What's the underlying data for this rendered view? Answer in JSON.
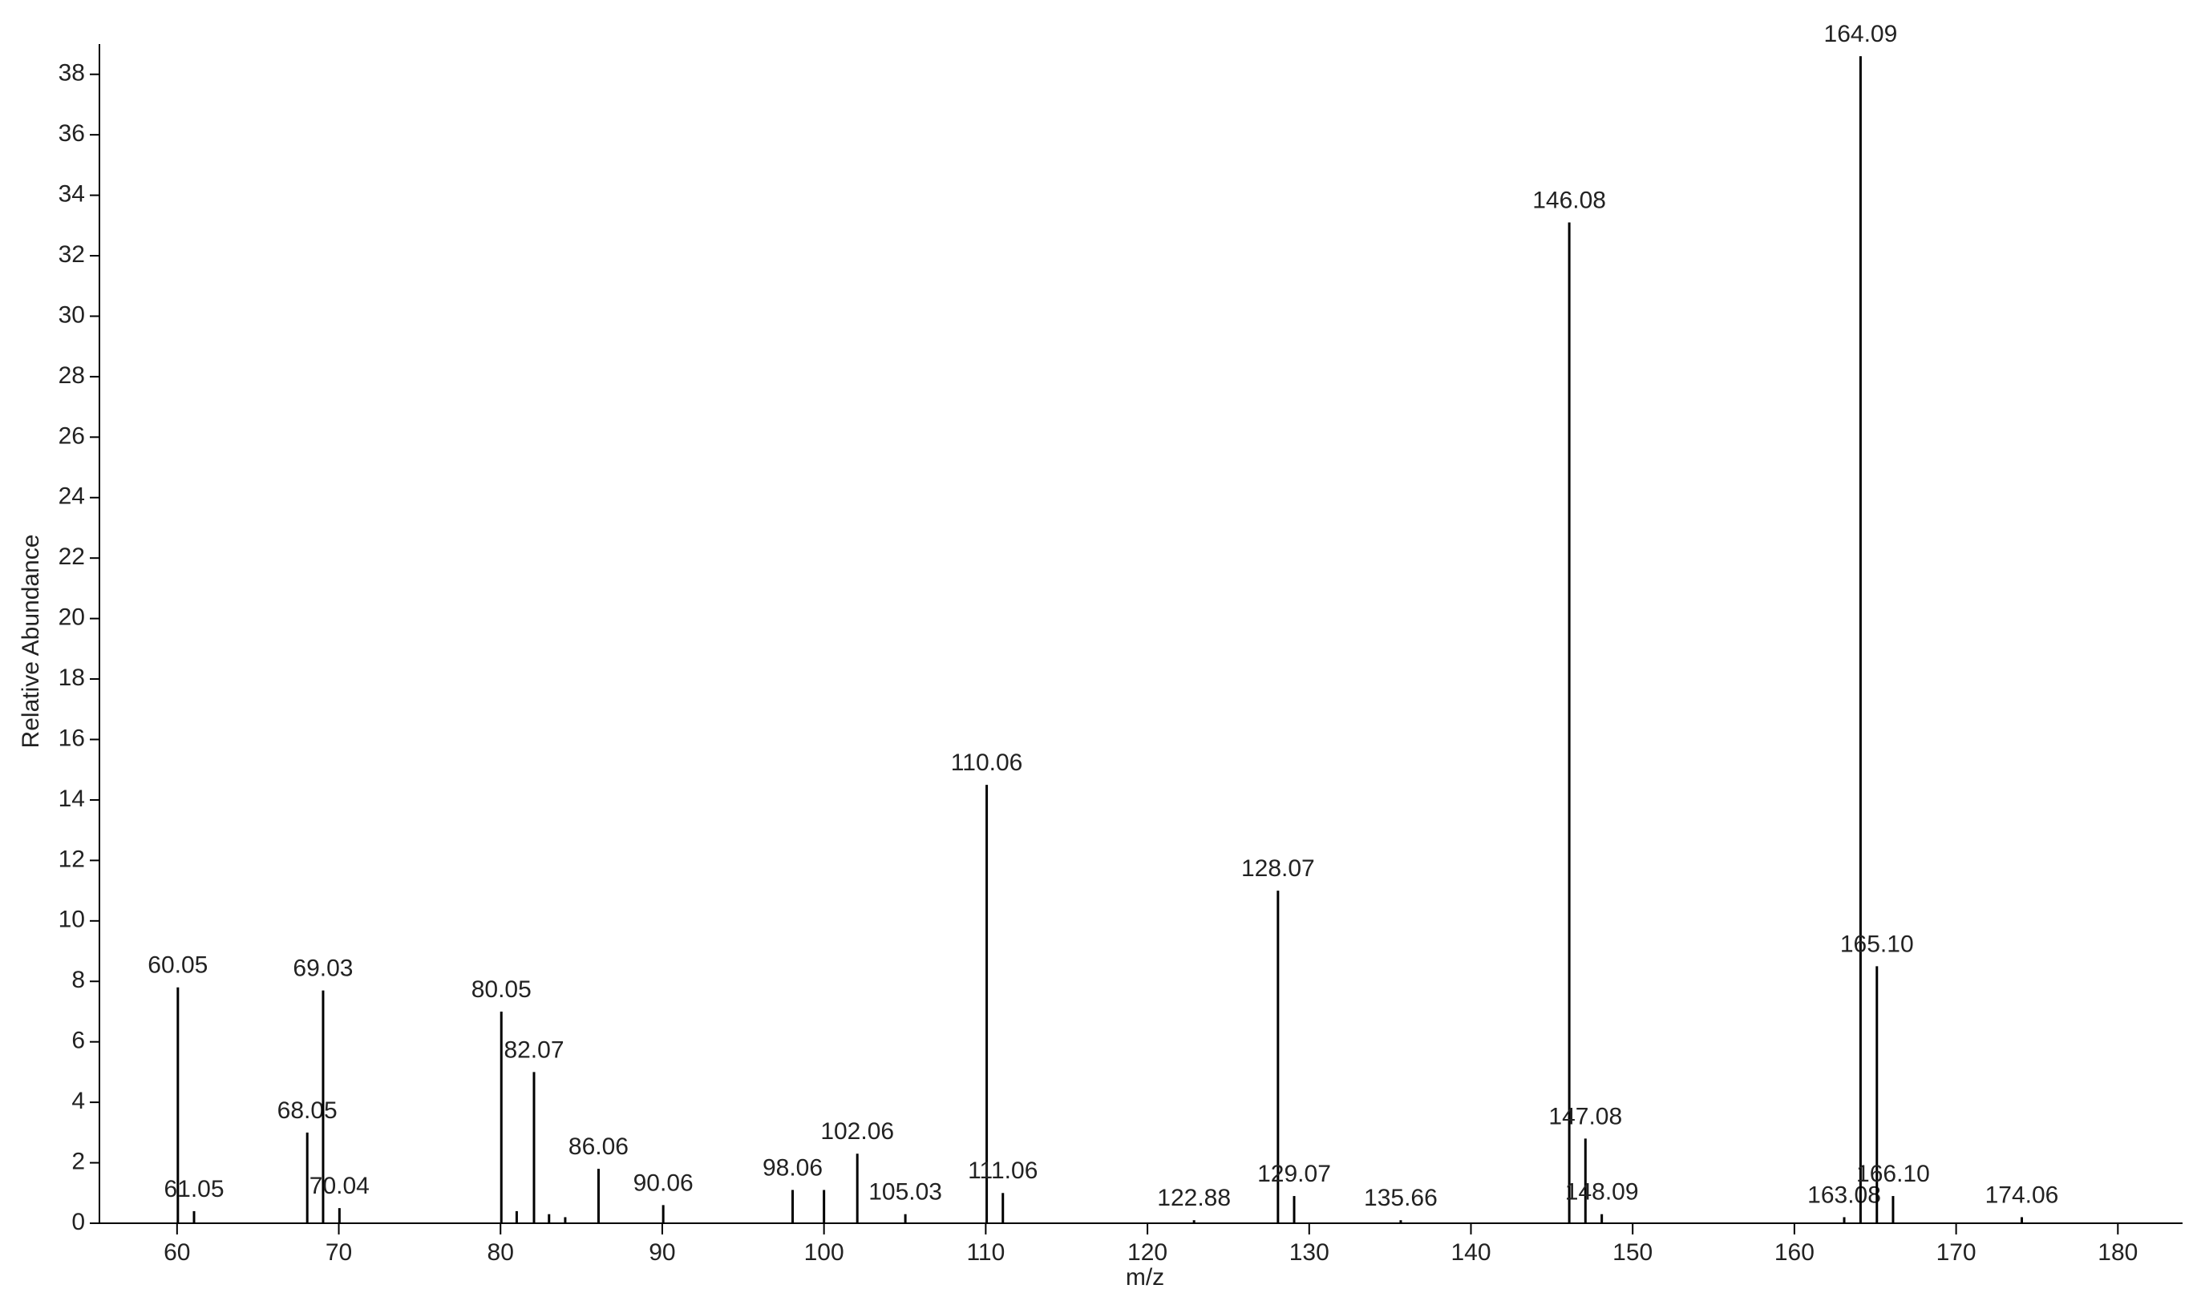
{
  "chart_data": {
    "type": "stem",
    "x_label": "m/z",
    "y_label": "Relative Abundance",
    "color": "#000000",
    "x": [
      60.05,
      61.05,
      68.05,
      69.03,
      70.04,
      80.05,
      81,
      82.07,
      83,
      84,
      86.06,
      90.06,
      98.06,
      100,
      102.06,
      105.03,
      110.06,
      111.06,
      122.88,
      128.07,
      129.07,
      135.66,
      146.08,
      147.08,
      148.09,
      163.08,
      164.09,
      165.1,
      166.1,
      174.06
    ],
    "labels": [
      "60.05",
      "61.05",
      "68.05",
      "69.03",
      "70.04",
      "80.05",
      null,
      "82.07",
      null,
      null,
      "86.06",
      "90.06",
      "98.06",
      null,
      "102.06",
      "105.03",
      "110.06",
      "111.06",
      "122.88",
      "128.07",
      "129.07",
      "135.66",
      "146.08",
      "147.08",
      "148.09",
      "163.08",
      "164.09",
      "165.10",
      "166.10",
      "174.06"
    ],
    "values": [
      7.8,
      0.4,
      3.0,
      7.7,
      0.5,
      7.0,
      0.4,
      5.0,
      0.3,
      0.2,
      1.8,
      0.6,
      1.1,
      1.1,
      2.3,
      0.3,
      14.5,
      1.0,
      0.1,
      11.0,
      0.9,
      0.1,
      33.1,
      2.8,
      0.3,
      0.2,
      38.6,
      8.5,
      0.9,
      0.2
    ],
    "xlim": [
      55.2,
      184
    ],
    "ylim": [
      0,
      39
    ],
    "xticks": [
      60,
      70,
      80,
      90,
      100,
      110,
      120,
      130,
      140,
      150,
      160,
      170,
      180
    ],
    "yticks": [
      0,
      2,
      4,
      6,
      8,
      10,
      12,
      14,
      16,
      18,
      20,
      22,
      24,
      26,
      28,
      30,
      32,
      34,
      36,
      38
    ]
  }
}
